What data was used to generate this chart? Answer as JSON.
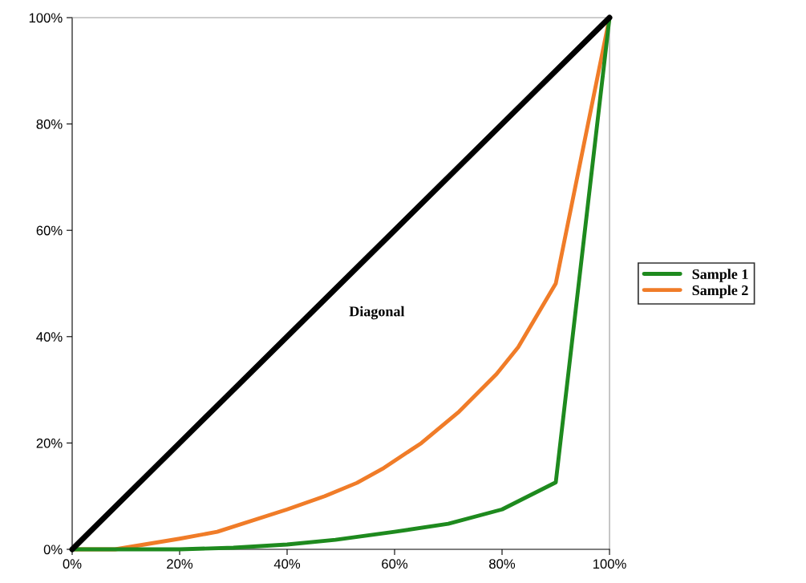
{
  "chart_data": {
    "type": "line",
    "series": [
      {
        "color": "#000000",
        "x": [
          0,
          20,
          40,
          60,
          80,
          100
        ],
        "values": [
          0,
          20,
          40,
          60,
          80,
          100
        ]
      },
      {
        "name": "Sample 1",
        "color": "#1e8a1e",
        "x": [
          0,
          20,
          30,
          40,
          49,
          60,
          70,
          80,
          90,
          100
        ],
        "values": [
          0,
          0,
          0.3,
          0.9,
          1.8,
          3.3,
          4.8,
          7.5,
          12.6,
          100
        ]
      },
      {
        "name": "Sample 2",
        "color": "#f07c28",
        "x": [
          0,
          8,
          20,
          27,
          40,
          47,
          53,
          58,
          65,
          72,
          79,
          83,
          90,
          100
        ],
        "values": [
          0,
          0,
          2,
          3.3,
          7.5,
          10,
          12.5,
          15.3,
          20,
          25.9,
          33,
          38,
          50,
          100
        ]
      }
    ],
    "annotations": [
      "Diagonal"
    ],
    "xlim": [
      0,
      100
    ],
    "ylim": [
      0,
      100
    ],
    "xticks": [
      {
        "value": 0,
        "label": "0%"
      },
      {
        "value": 20,
        "label": "20%"
      },
      {
        "value": 40,
        "label": "40%"
      },
      {
        "value": 60,
        "label": "60%"
      },
      {
        "value": 80,
        "label": "80%"
      },
      {
        "value": 100,
        "label": "100%"
      }
    ],
    "yticks": [
      {
        "value": 0,
        "label": "0%"
      },
      {
        "value": 20,
        "label": "20%"
      },
      {
        "value": 40,
        "label": "40%"
      },
      {
        "value": 60,
        "label": "60%"
      },
      {
        "value": 80,
        "label": "80%"
      },
      {
        "value": 100,
        "label": "100%"
      }
    ],
    "grid": false,
    "legend": "right",
    "marker": "none",
    "line_style": "solid"
  }
}
